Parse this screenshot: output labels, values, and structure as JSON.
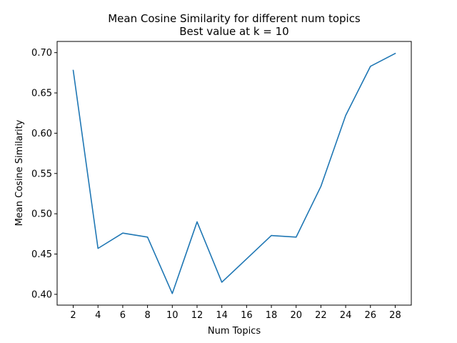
{
  "chart_data": {
    "type": "line",
    "title": "Mean Cosine Similarity for different num topics",
    "subtitle": "Best value at k = 10",
    "xlabel": "Num Topics",
    "ylabel": "Mean Cosine Similarity",
    "x": [
      2,
      4,
      6,
      8,
      10,
      12,
      14,
      16,
      18,
      20,
      22,
      24,
      26,
      28
    ],
    "series": [
      {
        "values": [
          0.678,
          0.457,
          0.476,
          0.471,
          0.401,
          0.49,
          0.415,
          0.444,
          0.473,
          0.471,
          0.534,
          0.622,
          0.683,
          0.699
        ],
        "color": "#1f77b4"
      }
    ],
    "xticks": [
      2,
      4,
      6,
      8,
      10,
      12,
      14,
      16,
      18,
      20,
      22,
      24,
      26,
      28
    ],
    "yticks": [
      0.4,
      0.45,
      0.5,
      0.55,
      0.6,
      0.65,
      0.7
    ],
    "xtick_labels": [
      "2",
      "4",
      "6",
      "8",
      "10",
      "12",
      "14",
      "16",
      "18",
      "20",
      "22",
      "24",
      "26",
      "28"
    ],
    "ytick_labels": [
      "0.40",
      "0.45",
      "0.50",
      "0.55",
      "0.60",
      "0.65",
      "0.70"
    ],
    "xlim": [
      0.7,
      29.3
    ],
    "ylim": [
      0.3866,
      0.7139
    ],
    "grid": false,
    "legend": "none"
  }
}
